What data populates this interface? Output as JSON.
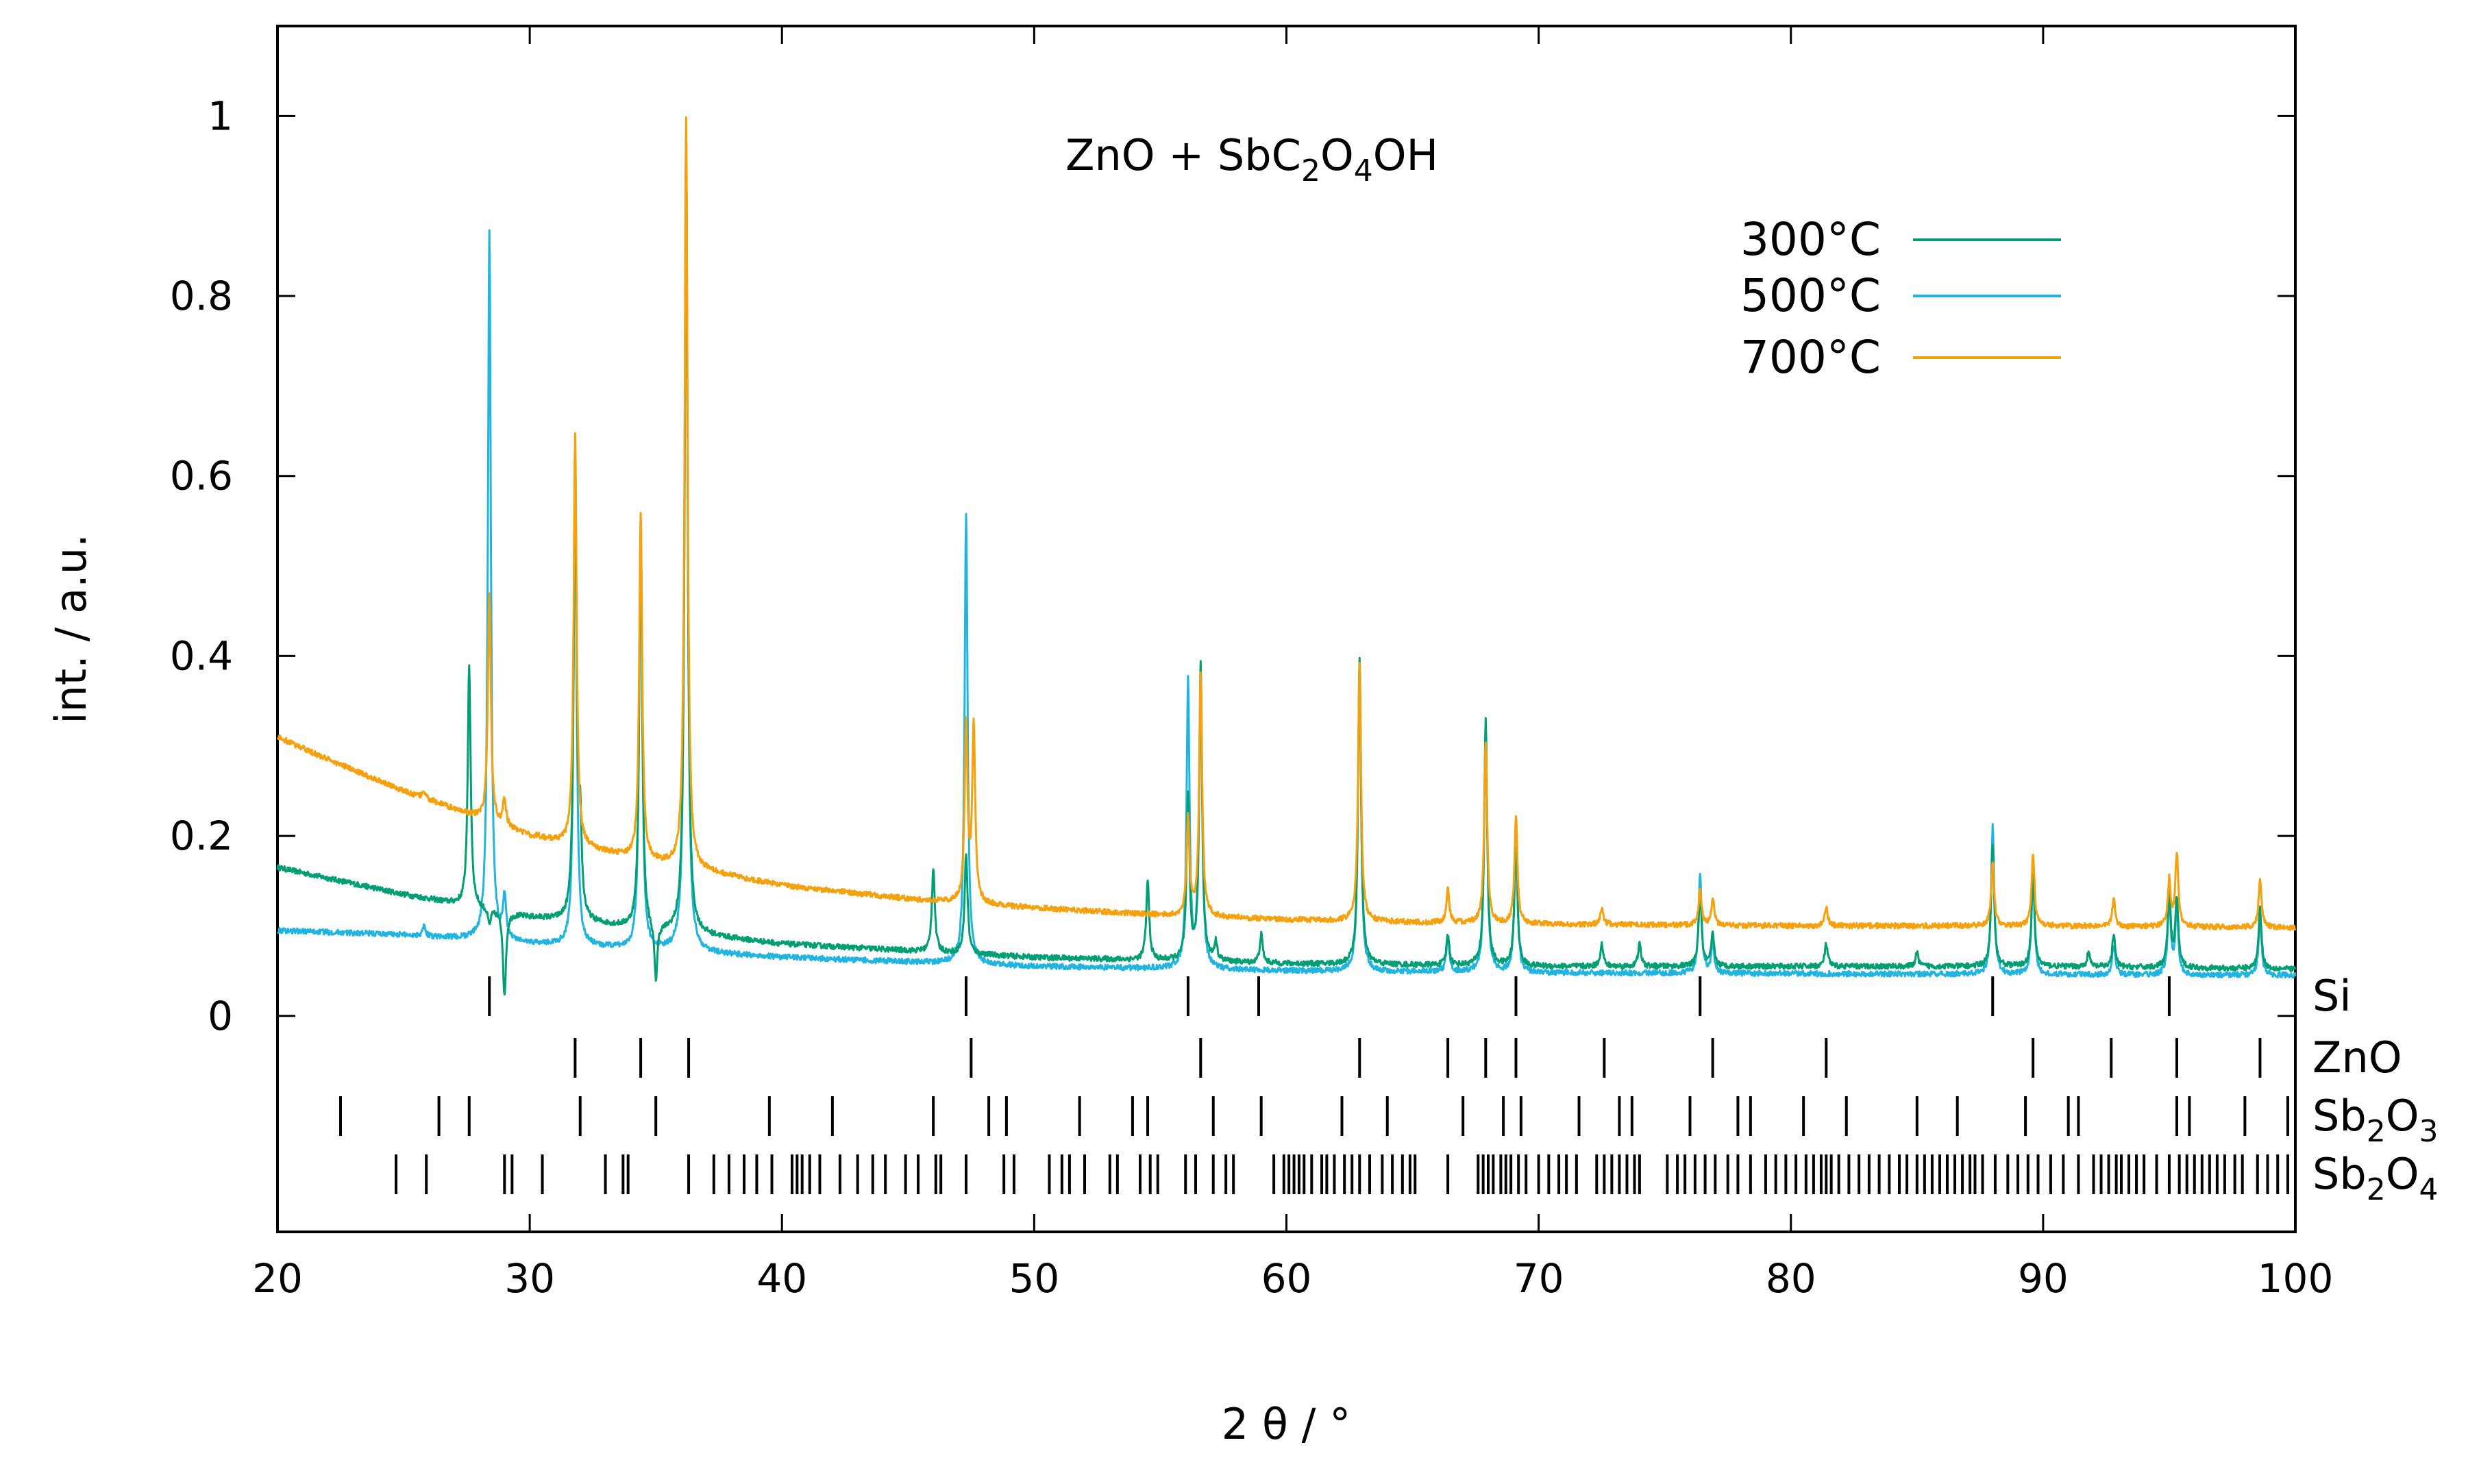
{
  "chart_data": {
    "type": "line",
    "title": "ZnO + SbC2O4OH",
    "title_parts": {
      "pre": "ZnO + SbC",
      "sub1": "2",
      "mid": "O",
      "sub2": "4",
      "post": "OH"
    },
    "xlabel": "2 θ / °",
    "ylabel": "int. / a.u.",
    "xlim": [
      20,
      100
    ],
    "ylim": [
      -0.24,
      1.1
    ],
    "x_ticks": [
      20,
      30,
      40,
      50,
      60,
      70,
      80,
      90,
      100
    ],
    "x_tick_labels": [
      "20",
      "30",
      "40",
      "50",
      "60",
      "70",
      "80",
      "90",
      "100"
    ],
    "y_ticks": [
      0,
      0.2,
      0.4,
      0.6,
      0.8,
      1
    ],
    "y_tick_labels": [
      "0",
      "0.2",
      "0.4",
      "0.6",
      "0.8",
      "1"
    ],
    "legend_position": "top-right",
    "series": [
      {
        "name": "300°C",
        "color": "#009e73",
        "baseline": [
          [
            20,
            0.165
          ],
          [
            25,
            0.135
          ],
          [
            30,
            0.11
          ],
          [
            40,
            0.08
          ],
          [
            50,
            0.065
          ],
          [
            60,
            0.058
          ],
          [
            70,
            0.055
          ],
          [
            80,
            0.055
          ],
          [
            90,
            0.055
          ],
          [
            100,
            0.052
          ]
        ],
        "peaks": [
          [
            27.6,
            0.39
          ],
          [
            28.4,
            0.1
          ],
          [
            29.0,
            0.02
          ],
          [
            31.8,
            0.6
          ],
          [
            32.0,
            0.2
          ],
          [
            34.4,
            0.55
          ],
          [
            35.0,
            0.03
          ],
          [
            36.2,
            0.98
          ],
          [
            46.0,
            0.165
          ],
          [
            47.3,
            0.18
          ],
          [
            54.5,
            0.15
          ],
          [
            56.1,
            0.24
          ],
          [
            56.6,
            0.39
          ],
          [
            57.2,
            0.08
          ],
          [
            59.0,
            0.09
          ],
          [
            62.9,
            0.4
          ],
          [
            66.4,
            0.09
          ],
          [
            67.9,
            0.33
          ],
          [
            69.1,
            0.2
          ],
          [
            72.5,
            0.08
          ],
          [
            74.0,
            0.08
          ],
          [
            76.4,
            0.14
          ],
          [
            76.9,
            0.09
          ],
          [
            81.4,
            0.08
          ],
          [
            85.0,
            0.07
          ],
          [
            88.0,
            0.19
          ],
          [
            89.6,
            0.16
          ],
          [
            91.8,
            0.07
          ],
          [
            92.8,
            0.09
          ],
          [
            95.0,
            0.14
          ],
          [
            95.3,
            0.13
          ],
          [
            98.6,
            0.12
          ]
        ]
      },
      {
        "name": "500°C",
        "color": "#22b4e1",
        "baseline": [
          [
            20,
            0.095
          ],
          [
            25,
            0.09
          ],
          [
            30,
            0.08
          ],
          [
            40,
            0.065
          ],
          [
            50,
            0.055
          ],
          [
            60,
            0.05
          ],
          [
            70,
            0.048
          ],
          [
            80,
            0.047
          ],
          [
            90,
            0.046
          ],
          [
            100,
            0.045
          ]
        ],
        "peaks": [
          [
            25.8,
            0.1
          ],
          [
            28.4,
            0.875
          ],
          [
            29.0,
            0.13
          ],
          [
            30.3,
            0.08
          ],
          [
            31.8,
            0.6
          ],
          [
            34.4,
            0.55
          ],
          [
            36.2,
            0.98
          ],
          [
            47.3,
            0.56
          ],
          [
            56.1,
            0.37
          ],
          [
            56.6,
            0.37
          ],
          [
            62.9,
            0.39
          ],
          [
            66.4,
            0.09
          ],
          [
            67.9,
            0.32
          ],
          [
            69.1,
            0.2
          ],
          [
            76.4,
            0.16
          ],
          [
            76.9,
            0.08
          ],
          [
            88.0,
            0.21
          ],
          [
            89.6,
            0.16
          ],
          [
            92.8,
            0.08
          ],
          [
            95.0,
            0.13
          ],
          [
            95.3,
            0.12
          ],
          [
            98.6,
            0.11
          ]
        ]
      },
      {
        "name": "700°C",
        "color": "#f5a10d",
        "baseline": [
          [
            20,
            0.31
          ],
          [
            22,
            0.285
          ],
          [
            25,
            0.25
          ],
          [
            28,
            0.22
          ],
          [
            30,
            0.2
          ],
          [
            35,
            0.17
          ],
          [
            40,
            0.145
          ],
          [
            45,
            0.13
          ],
          [
            50,
            0.12
          ],
          [
            55,
            0.112
          ],
          [
            60,
            0.107
          ],
          [
            65,
            0.104
          ],
          [
            70,
            0.102
          ],
          [
            80,
            0.1
          ],
          [
            90,
            0.1
          ],
          [
            100,
            0.098
          ]
        ],
        "peaks": [
          [
            25.8,
            0.25
          ],
          [
            28.4,
            0.47
          ],
          [
            29.0,
            0.24
          ],
          [
            30.3,
            0.2
          ],
          [
            31.8,
            0.645
          ],
          [
            34.4,
            0.56
          ],
          [
            36.2,
            1.0
          ],
          [
            47.3,
            0.32
          ],
          [
            47.6,
            0.32
          ],
          [
            56.1,
            0.22
          ],
          [
            56.6,
            0.38
          ],
          [
            62.9,
            0.39
          ],
          [
            66.4,
            0.14
          ],
          [
            67.9,
            0.305
          ],
          [
            69.1,
            0.22
          ],
          [
            72.5,
            0.12
          ],
          [
            76.4,
            0.14
          ],
          [
            76.9,
            0.13
          ],
          [
            81.4,
            0.12
          ],
          [
            88.0,
            0.17
          ],
          [
            89.6,
            0.18
          ],
          [
            92.8,
            0.13
          ],
          [
            95.0,
            0.15
          ],
          [
            95.3,
            0.18
          ],
          [
            98.6,
            0.15
          ]
        ]
      }
    ],
    "reference_phases": [
      {
        "name": "Si",
        "label_parts": {
          "base": "Si"
        },
        "positions": [
          28.4,
          47.3,
          56.1,
          58.9,
          69.1,
          76.4,
          88.0,
          95.0
        ]
      },
      {
        "name": "ZnO",
        "label_parts": {
          "base": "ZnO"
        },
        "positions": [
          31.8,
          34.4,
          36.3,
          47.5,
          56.6,
          62.9,
          66.4,
          67.9,
          69.1,
          72.6,
          76.9,
          81.4,
          89.6,
          92.7,
          95.3,
          98.6
        ]
      },
      {
        "name": "Sb2O3",
        "label_parts": {
          "base": "Sb",
          "sub1": "2",
          "mid": "O",
          "sub2": "3"
        },
        "positions": [
          22.5,
          26.4,
          27.6,
          32.0,
          35.0,
          39.5,
          42.0,
          46.0,
          48.2,
          48.9,
          51.8,
          53.9,
          54.5,
          57.1,
          59.0,
          62.2,
          64.0,
          67.0,
          68.6,
          69.3,
          71.6,
          73.2,
          73.7,
          76.0,
          77.9,
          78.4,
          80.5,
          82.2,
          85.0,
          86.6,
          89.3,
          91.0,
          91.4,
          95.3,
          95.8,
          98.0,
          99.7
        ]
      },
      {
        "name": "Sb2O4",
        "label_parts": {
          "base": "Sb",
          "sub1": "2",
          "mid": "O",
          "sub2": "4"
        },
        "positions": [
          24.7,
          25.9,
          29.0,
          29.3,
          30.5,
          33.0,
          33.7,
          33.9,
          36.3,
          37.3,
          37.9,
          38.5,
          39.0,
          39.6,
          40.4,
          40.6,
          40.8,
          41.1,
          41.5,
          42.3,
          43.0,
          43.6,
          44.1,
          44.9,
          45.4,
          46.1,
          46.3,
          47.3,
          48.8,
          49.2,
          50.6,
          51.1,
          51.4,
          52.0,
          53.0,
          53.3,
          54.2,
          54.6,
          54.9,
          56.0,
          56.4,
          57.1,
          57.6,
          57.9,
          59.5,
          59.9,
          60.1,
          60.3,
          60.5,
          60.7,
          61.0,
          61.4,
          61.6,
          61.9,
          62.3,
          62.6,
          62.9,
          63.3,
          63.8,
          64.2,
          64.6,
          64.9,
          65.1,
          66.4,
          67.6,
          67.8,
          68.0,
          68.2,
          68.5,
          68.7,
          68.9,
          69.2,
          69.5,
          70.0,
          70.4,
          70.8,
          71.1,
          71.5,
          72.3,
          72.6,
          72.9,
          73.2,
          73.5,
          73.8,
          74.0,
          75.1,
          75.5,
          75.8,
          76.2,
          76.6,
          77.0,
          77.5,
          77.9,
          78.4,
          79.0,
          79.4,
          79.8,
          80.2,
          80.6,
          80.9,
          81.2,
          81.4,
          81.6,
          81.9,
          82.3,
          82.7,
          83.1,
          83.5,
          83.9,
          84.3,
          84.6,
          85.0,
          85.3,
          85.6,
          85.9,
          86.2,
          86.5,
          86.8,
          87.1,
          87.3,
          87.6,
          88.1,
          88.6,
          89.0,
          89.4,
          89.8,
          90.3,
          90.8,
          91.4,
          92.0,
          92.3,
          92.6,
          92.9,
          93.1,
          93.4,
          93.7,
          94.0,
          94.5,
          95.0,
          95.4,
          95.7,
          96.0,
          96.3,
          96.6,
          96.9,
          97.2,
          97.6,
          97.9,
          98.5,
          98.9,
          99.3,
          99.7
        ]
      }
    ]
  }
}
